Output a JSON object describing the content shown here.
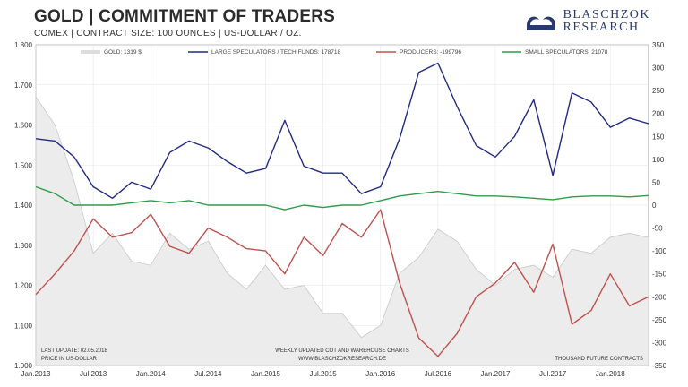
{
  "header": {
    "title": "GOLD  |  COMMITMENT OF TRADERS",
    "subtitle": "COMEX  |  CONTRACT SIZE: 100 OUNCES  |  US-DOLLAR / OZ.",
    "logo_line1": "BLASCHZOK",
    "logo_line2": "RESEARCH",
    "logo_color": "#2a3a6e"
  },
  "footer": {
    "last_update": "LAST UPDATE: 02.05.2018",
    "price_note": "PRICE IN US-DOLLAR",
    "center_line1": "WEEKLY UPDATED COT AND WAREHOUSE CHARTS",
    "center_line2": "WWW.BLASCHZOKRESEARCH.DE",
    "right_note": "THOUSAND FUTURE CONTRACTS"
  },
  "chart_data": {
    "type": "line",
    "x": [
      "Jan.2013",
      "Mar.2013",
      "May.2013",
      "Jul.2013",
      "Sep.2013",
      "Nov.2013",
      "Jan.2014",
      "Mar.2014",
      "May.2014",
      "Jul.2014",
      "Sep.2014",
      "Nov.2014",
      "Jan.2015",
      "Mar.2015",
      "May.2015",
      "Jul.2015",
      "Sep.2015",
      "Nov.2015",
      "Jan.2016",
      "Mar.2016",
      "May.2016",
      "Jul.2016",
      "Sep.2016",
      "Nov.2016",
      "Jan.2017",
      "Mar.2017",
      "May.2017",
      "Jul.2017",
      "Sep.2017",
      "Nov.2017",
      "Jan.2018",
      "Mar.2018",
      "May.2018"
    ],
    "x_tick_labels": [
      "Jan.2013",
      "Jul.2013",
      "Jan.2014",
      "Jul.2014",
      "Jan.2015",
      "Jul.2015",
      "Jan.2016",
      "Jul.2016",
      "Jan.2017",
      "Jul.2017",
      "Jan.2018"
    ],
    "y_left": {
      "ylim": [
        1000,
        1800
      ],
      "ticks": [
        "1.000",
        "1.100",
        "1.200",
        "1.300",
        "1.400",
        "1.500",
        "1.600",
        "1.700",
        "1.800"
      ]
    },
    "y_right": {
      "ylim": [
        -350,
        350
      ],
      "ticks": [
        "350",
        "300",
        "250",
        "200",
        "150",
        "100",
        "50",
        "0",
        "-50",
        "-100",
        "-150",
        "-200",
        "-250",
        "-300",
        "-350"
      ]
    },
    "series": [
      {
        "name": "GOLD: 1319 $",
        "axis": "left",
        "style": "area",
        "color": "#dcdcdc",
        "values": [
          1670,
          1600,
          1460,
          1280,
          1330,
          1260,
          1250,
          1330,
          1290,
          1310,
          1230,
          1190,
          1250,
          1190,
          1200,
          1130,
          1130,
          1070,
          1100,
          1230,
          1270,
          1340,
          1310,
          1240,
          1200,
          1240,
          1250,
          1220,
          1290,
          1280,
          1320,
          1330,
          1319
        ]
      },
      {
        "name": "LARGE SPECULATORS / TECH FUNDS: 178718",
        "axis": "right",
        "style": "line",
        "color": "#1f2a80",
        "values": [
          145,
          140,
          105,
          40,
          15,
          50,
          35,
          115,
          140,
          125,
          95,
          70,
          80,
          185,
          85,
          70,
          70,
          25,
          40,
          145,
          290,
          310,
          215,
          130,
          105,
          150,
          230,
          65,
          245,
          225,
          170,
          190,
          178
        ]
      },
      {
        "name": "PRODUCERS: -199796",
        "axis": "right",
        "style": "line",
        "color": "#c0504d",
        "values": [
          -195,
          -150,
          -100,
          -30,
          -70,
          -60,
          -20,
          -90,
          -105,
          -50,
          -70,
          -95,
          -100,
          -150,
          -70,
          -110,
          -40,
          -70,
          -10,
          -170,
          -290,
          -330,
          -280,
          -200,
          -170,
          -125,
          -190,
          -85,
          -260,
          -230,
          -150,
          -220,
          -200
        ]
      },
      {
        "name": "SMALL SPECULATORS: 21078",
        "axis": "right",
        "style": "line",
        "color": "#2e9b4a",
        "values": [
          40,
          25,
          0,
          0,
          0,
          5,
          10,
          5,
          10,
          0,
          0,
          0,
          0,
          -10,
          0,
          -5,
          0,
          0,
          10,
          20,
          25,
          30,
          25,
          20,
          20,
          18,
          15,
          12,
          18,
          20,
          20,
          18,
          21
        ]
      }
    ]
  }
}
